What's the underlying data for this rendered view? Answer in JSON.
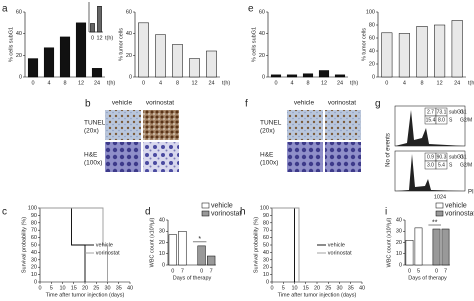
{
  "panel_labels": [
    "a",
    "b",
    "c",
    "d",
    "e",
    "f",
    "g",
    "h",
    "i"
  ],
  "chart_data": [
    {
      "type": "bar",
      "ylabel": "% cells subG1",
      "xlabel": "t(h)",
      "categories": [
        "0",
        "4",
        "8",
        "12",
        "24"
      ],
      "values": [
        17,
        27,
        37,
        50,
        8
      ],
      "color": "#111111",
      "ylim": [
        0,
        60
      ],
      "yticks": [
        0,
        20,
        40,
        60
      ]
    },
    {
      "type": "bar",
      "xlabel": "t(h)",
      "categories": [
        "0",
        "12"
      ],
      "values": [
        20,
        60
      ],
      "color": "#666666",
      "ylim": [
        0,
        70
      ]
    },
    {
      "type": "bar",
      "ylabel": "% tumor cells",
      "xlabel": "t(h)",
      "categories": [
        "0",
        "4",
        "8",
        "12",
        "24"
      ],
      "values": [
        50,
        39,
        30,
        17,
        24
      ],
      "color": "#e8e8e8",
      "ylim": [
        0,
        60
      ],
      "yticks": [
        0,
        20,
        40,
        60
      ]
    },
    {
      "type": "bar",
      "ylabel": "% cells subG1",
      "xlabel": "t(h)",
      "categories": [
        "0",
        "4",
        "8",
        "12",
        "24"
      ],
      "values": [
        2,
        2,
        3,
        6,
        2
      ],
      "color": "#111111",
      "ylim": [
        0,
        60
      ],
      "yticks": [
        0,
        20,
        40,
        60
      ]
    },
    {
      "type": "bar",
      "ylabel": "% tumor cells",
      "xlabel": "t(h)",
      "categories": [
        "0",
        "4",
        "8",
        "12",
        "24"
      ],
      "values": [
        68,
        67,
        78,
        80,
        87
      ],
      "color": "#e8e8e8",
      "ylim": [
        0,
        100
      ],
      "yticks": [
        0,
        20,
        40,
        60,
        80,
        100
      ]
    },
    {
      "type": "line",
      "ylabel": "Survival probability (%)",
      "xlabel": "Time after tumor injection (days)",
      "xlim": [
        0,
        40
      ],
      "xticks": [
        0,
        5,
        10,
        15,
        20,
        25,
        30,
        35,
        40
      ],
      "ylim": [
        0,
        100
      ],
      "yticks": [
        0,
        10,
        20,
        30,
        40,
        50,
        60,
        70,
        80,
        90,
        100
      ],
      "series": [
        {
          "name": "vehicle",
          "color": "#000000",
          "x": [
            0,
            14,
            14,
            20,
            20
          ],
          "values": [
            100,
            100,
            50,
            50,
            0
          ]
        },
        {
          "name": "vorinostat",
          "color": "#999999",
          "x": [
            0,
            28,
            28,
            30,
            30
          ],
          "values": [
            100,
            100,
            50,
            50,
            0
          ]
        }
      ]
    },
    {
      "type": "grouped-bar",
      "ylabel": "WBC count (x10³/µl)",
      "xlabel": "Days of therapy",
      "annotation": "*",
      "ylim": [
        0,
        40
      ],
      "yticks": [
        0,
        10,
        20,
        30,
        40
      ],
      "series": [
        {
          "name": "vehicle",
          "color": "#ffffff",
          "categories": [
            "0",
            "7"
          ],
          "values": [
            27,
            30
          ]
        },
        {
          "name": "vorinostat",
          "color": "#999999",
          "categories": [
            "0",
            "7"
          ],
          "values": [
            17,
            8
          ]
        }
      ]
    },
    {
      "type": "line",
      "ylabel": "Survival probability (%)",
      "xlabel": "Time after tumor injection (days)",
      "xlim": [
        0,
        40
      ],
      "xticks": [
        0,
        5,
        10,
        15,
        20,
        25,
        30,
        35,
        40
      ],
      "ylim": [
        0,
        100
      ],
      "yticks": [
        0,
        10,
        20,
        30,
        40,
        50,
        60,
        70,
        80,
        90,
        100
      ],
      "series": [
        {
          "name": "vehicle",
          "color": "#000000",
          "x": [
            0,
            10,
            10
          ],
          "values": [
            100,
            100,
            0
          ]
        },
        {
          "name": "vorinostat",
          "color": "#999999",
          "x": [
            0,
            12,
            12
          ],
          "values": [
            100,
            100,
            0
          ]
        }
      ]
    },
    {
      "type": "grouped-bar",
      "ylabel": "WBC count (x10³/µl)",
      "xlabel": "Days of therapy",
      "annotation": "**",
      "ylim": [
        0,
        40
      ],
      "yticks": [
        0,
        10,
        20,
        30,
        40
      ],
      "series": [
        {
          "name": "vehicle",
          "color": "#ffffff",
          "categories": [
            "0",
            "5"
          ],
          "values": [
            22,
            33
          ]
        },
        {
          "name": "vorinostat",
          "color": "#999999",
          "categories": [
            "0",
            "7"
          ],
          "values": [
            32,
            32
          ]
        }
      ]
    }
  ],
  "micrographs": [
    {
      "columns": [
        "vehicle",
        "vorinostat"
      ],
      "rows": [
        [
          "TUNEL",
          "(20x)"
        ],
        [
          "H&E",
          "(100x)"
        ]
      ]
    },
    {
      "columns": [
        "vehicle",
        "vorinostat"
      ],
      "rows": [
        [
          "TUNEL",
          "(20x)"
        ],
        [
          "H&E",
          "(100x)"
        ]
      ]
    }
  ],
  "flow": {
    "y_label": "No of events",
    "x_label": "PI",
    "x_tick": "1024",
    "panels": [
      {
        "cells": [
          [
            "2.7",
            "73.1"
          ],
          [
            "15.4",
            "8.0"
          ]
        ]
      },
      {
        "cells": [
          [
            "0.9",
            "90.3"
          ],
          [
            "3.0",
            "5.4"
          ]
        ]
      }
    ],
    "gates": [
      [
        "subG1",
        "G1"
      ],
      [
        "S",
        "G2/M"
      ]
    ]
  }
}
